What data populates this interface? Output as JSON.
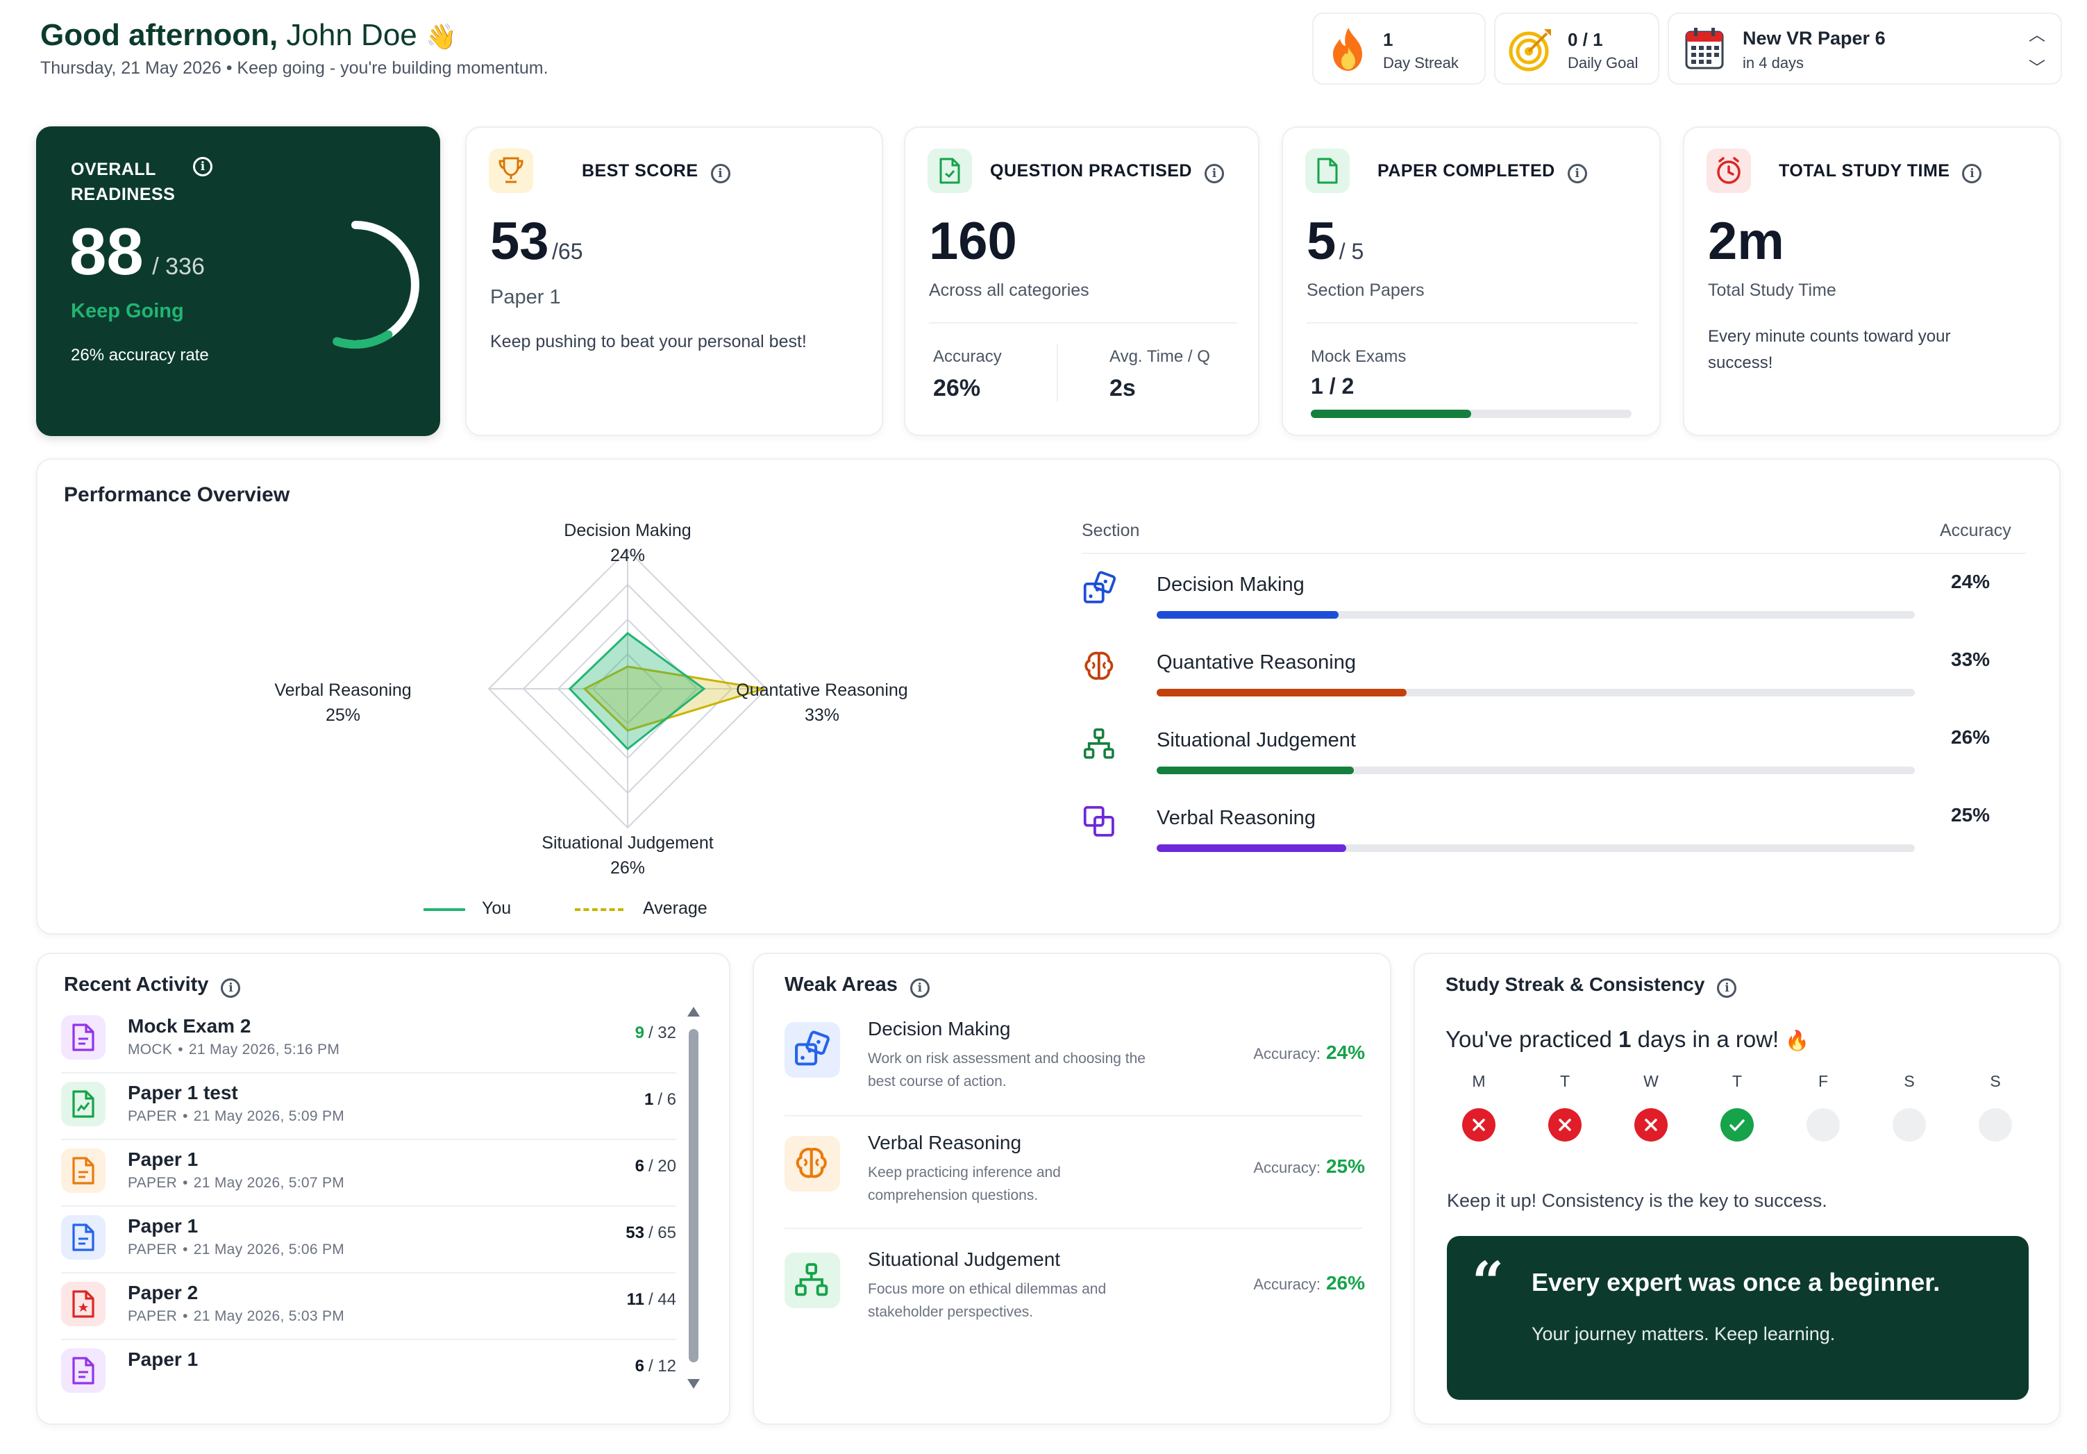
{
  "header": {
    "greeting_bold": "Good afternoon,",
    "greeting_name": "John Doe",
    "greeting_emoji": "👋",
    "subtitle": "Thursday, 21 May 2026 • Keep going - you're building momentum.",
    "streak": {
      "value": "1",
      "label": "Day Streak",
      "icon": "fire-icon"
    },
    "goal": {
      "value": "0 / 1",
      "label": "Daily Goal",
      "icon": "target-icon"
    },
    "upcoming": {
      "title": "New VR Paper 6",
      "subtitle": "in 4 days",
      "icon": "calendar-icon"
    }
  },
  "stats": {
    "readiness": {
      "label_line1": "OVERALL",
      "label_line2": "READINESS",
      "value": "88",
      "total": "/ 336",
      "status": "Keep Going",
      "accuracy_text": "26% accuracy rate",
      "progress": 0.26
    },
    "best_score": {
      "label": "BEST SCORE",
      "value": "53",
      "total": "/65",
      "paper": "Paper 1",
      "note": "Keep pushing to beat your personal best!"
    },
    "questions": {
      "label": "QUESTION PRACTISED",
      "value": "160",
      "sub": "Across all categories",
      "accuracy_label": "Accuracy",
      "accuracy_value": "26%",
      "time_label": "Avg. Time / Q",
      "time_value": "2s"
    },
    "papers": {
      "label": "PAPER COMPLETED",
      "value": "5",
      "total": "/ 5",
      "sub": "Section Papers",
      "mock_label": "Mock Exams",
      "mock_value": "1 / 2",
      "mock_progress": 0.5
    },
    "study_time": {
      "label": "TOTAL STUDY TIME",
      "value": "2m",
      "sub": "Total Study Time",
      "note_line1": "Every minute counts toward your",
      "note_line2": "success!"
    }
  },
  "performance": {
    "title": "Performance Overview",
    "radar": {
      "axes": [
        {
          "name": "Decision Making",
          "value": "24%"
        },
        {
          "name": "Quantative Reasoning",
          "value": "33%"
        },
        {
          "name": "Situational Judgement",
          "value": "26%"
        },
        {
          "name": "Verbal Reasoning",
          "value": "25%"
        }
      ],
      "legend_you": "You",
      "legend_average": "Average",
      "you_color": "#22b573",
      "average_color": "#c9b400"
    },
    "section_header": "Section",
    "accuracy_header": "Accuracy",
    "sections": [
      {
        "name": "Decision Making",
        "accuracy": "24%",
        "value": 24,
        "color": "#1d4ed8",
        "icon": "dice-icon"
      },
      {
        "name": "Quantative Reasoning",
        "accuracy": "33%",
        "value": 33,
        "color": "#c2410c",
        "icon": "brain-icon"
      },
      {
        "name": "Situational Judgement",
        "accuracy": "26%",
        "value": 26,
        "color": "#15803d",
        "icon": "hierarchy-icon"
      },
      {
        "name": "Verbal Reasoning",
        "accuracy": "25%",
        "value": 25,
        "color": "#6d28d9",
        "icon": "copy-icon"
      }
    ]
  },
  "recent": {
    "title": "Recent Activity",
    "items": [
      {
        "name": "Mock Exam 2",
        "type": "MOCK",
        "date": "21 May 2026, 5:16 PM",
        "score": "9",
        "total": "/ 32",
        "score_color": "#16a34a",
        "icon": "document-icon",
        "tint": "#f3e8ff",
        "stroke": "#9333ea"
      },
      {
        "name": "Paper 1 test",
        "type": "PAPER",
        "date": "21 May 2026, 5:09 PM",
        "score": "1",
        "total": "/ 6",
        "score_color": "#111827",
        "icon": "chart-document-icon",
        "tint": "#e3f6ea",
        "stroke": "#16a34a"
      },
      {
        "name": "Paper 1",
        "type": "PAPER",
        "date": "21 May 2026, 5:07 PM",
        "score": "6",
        "total": "/ 20",
        "score_color": "#111827",
        "icon": "document-icon",
        "tint": "#fff1e0",
        "stroke": "#ea7a0c"
      },
      {
        "name": "Paper 1",
        "type": "PAPER",
        "date": "21 May 2026, 5:06 PM",
        "score": "53",
        "total": "/ 65",
        "score_color": "#111827",
        "icon": "document-icon",
        "tint": "#e6eeff",
        "stroke": "#2563eb"
      },
      {
        "name": "Paper 2",
        "type": "PAPER",
        "date": "21 May 2026, 5:03 PM",
        "score": "11",
        "total": "/ 44",
        "score_color": "#111827",
        "icon": "star-document-icon",
        "tint": "#fde6e6",
        "stroke": "#dc2626"
      },
      {
        "name": "Paper 1",
        "type": "",
        "date": "",
        "score": "6",
        "total": "/ 12",
        "score_color": "#111827",
        "icon": "document-icon",
        "tint": "#f3e8ff",
        "stroke": "#9333ea"
      }
    ]
  },
  "weak": {
    "title": "Weak Areas",
    "accuracy_prefix": "Accuracy:",
    "items": [
      {
        "name": "Decision Making",
        "desc_line1": "Work on risk assessment and choosing the",
        "desc_line2": "best course of action.",
        "accuracy": "24%",
        "icon": "dice-icon",
        "tint": "#e6eeff",
        "stroke": "#2563eb"
      },
      {
        "name": "Verbal Reasoning",
        "desc_line1": "Keep practicing inference and",
        "desc_line2": "comprehension questions.",
        "accuracy": "25%",
        "icon": "brain-icon",
        "tint": "#fff1e0",
        "stroke": "#ea7a0c"
      },
      {
        "name": "Situational Judgement",
        "desc_line1": "Focus more on ethical dilemmas and",
        "desc_line2": "stakeholder perspectives.",
        "accuracy": "26%",
        "icon": "hierarchy-icon",
        "tint": "#e3f6ea",
        "stroke": "#16a34a"
      }
    ]
  },
  "streak": {
    "title": "Study Streak & Consistency",
    "message_pre": "You've practiced",
    "message_count": "1",
    "message_post": "days in a row!",
    "days": [
      {
        "label": "M",
        "status": "missed"
      },
      {
        "label": "T",
        "status": "missed"
      },
      {
        "label": "W",
        "status": "missed"
      },
      {
        "label": "T",
        "status": "done"
      },
      {
        "label": "F",
        "status": "none"
      },
      {
        "label": "S",
        "status": "none"
      },
      {
        "label": "S",
        "status": "none"
      }
    ],
    "encourage": "Keep it up! Consistency is the key to success.",
    "quote": "Every expert was once a beginner.",
    "quote_sub": "Your journey matters. Keep learning."
  }
}
